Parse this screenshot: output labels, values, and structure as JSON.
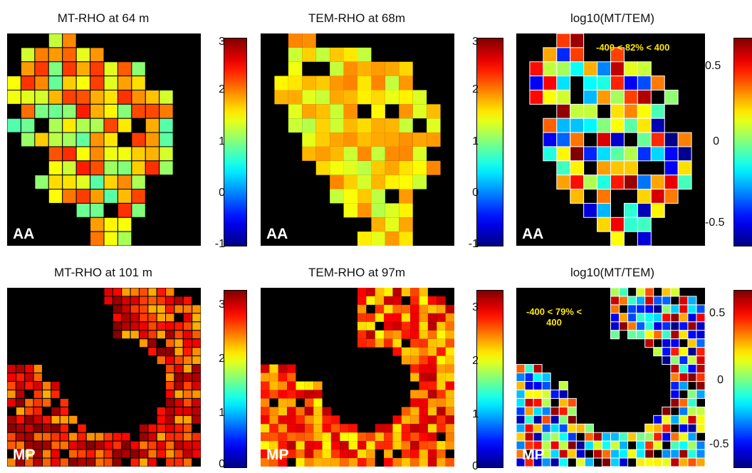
{
  "panels": [
    {
      "id": "p1",
      "title": "MT-RHO at 64 m",
      "site": "AA",
      "kind": "rho",
      "shape": "aa",
      "annotation": []
    },
    {
      "id": "p2",
      "title": "TEM-RHO at 68m",
      "site": "AA",
      "kind": "rho",
      "shape": "aa2",
      "annotation": []
    },
    {
      "id": "p3",
      "title": "log10(MT/TEM)",
      "site": "AA",
      "kind": "ratio",
      "shape": "aa3",
      "annotation": [
        "-400  < 82% < 400"
      ]
    },
    {
      "id": "p4",
      "title": "MT-RHO at 101 m",
      "site": "MP",
      "kind": "rho",
      "shape": "mp",
      "annotation": []
    },
    {
      "id": "p5",
      "title": "TEM-RHO at 97m",
      "site": "MP",
      "kind": "rho",
      "shape": "mp2",
      "annotation": []
    },
    {
      "id": "p6",
      "title": "log10(MT/TEM)",
      "site": "MP",
      "kind": "ratio",
      "shape": "mp3",
      "annotation": [
        "-400  < 79% <",
        "400"
      ]
    }
  ],
  "colorbars": [
    {
      "id": "cb1",
      "ticks": [
        "3",
        "2",
        "1",
        "0",
        "-1"
      ]
    },
    {
      "id": "cb2",
      "ticks": [
        "3",
        "2",
        "1",
        "0",
        "-1"
      ]
    },
    {
      "id": "cb3",
      "ticks": [
        "0.5",
        "0",
        "-0.5"
      ]
    },
    {
      "id": "cb4",
      "ticks": [
        "3",
        "2",
        "1",
        "0"
      ]
    },
    {
      "id": "cb5",
      "ticks": [
        "3",
        "2",
        "1",
        "0"
      ]
    },
    {
      "id": "cb6",
      "ticks": [
        "0.5",
        "0",
        "-0.5"
      ]
    }
  ],
  "colors": {
    "colormap": "jet",
    "map_background": "#000000",
    "annotation_color": "#ffe600",
    "site_label_color": "#ffffff"
  },
  "chart_data": {
    "type": "heatmap",
    "colormap": "jet",
    "rows": [
      "AA",
      "MP"
    ],
    "columns": [
      "MT-RHO",
      "TEM-RHO",
      "log10(MT/TEM)"
    ],
    "ranges": {
      "AA_rho": [
        -1,
        3
      ],
      "MP_rho": [
        0,
        3
      ],
      "ratio": [
        -0.65,
        0.65
      ]
    }
  }
}
